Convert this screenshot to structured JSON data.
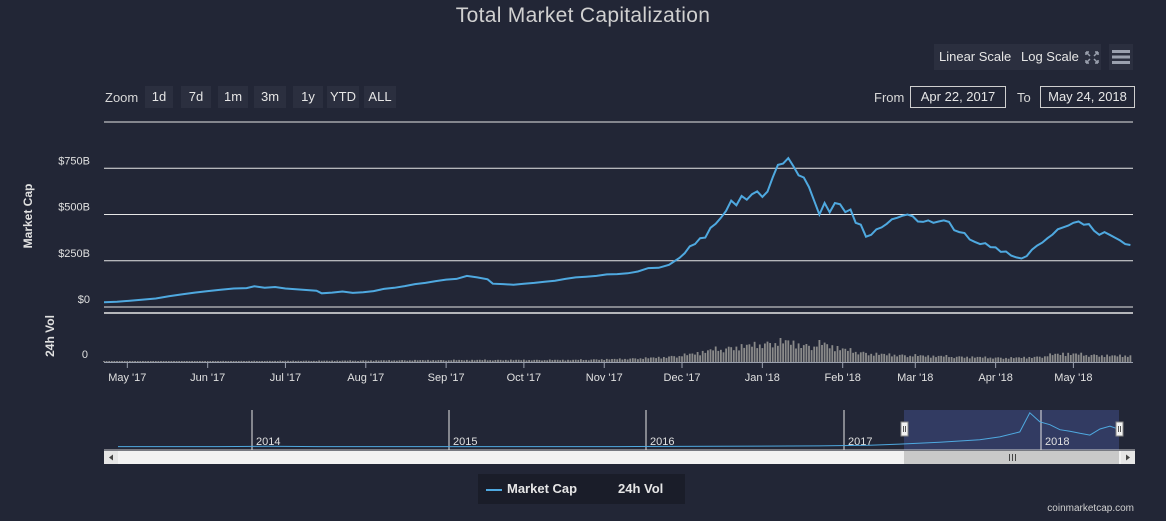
{
  "chart_data": {
    "type": "line",
    "title": "Total Market Capitalization",
    "ylabel": "Market Cap",
    "volume_label": "24h Vol",
    "ylim": [
      0,
      1000
    ],
    "y_ticks": [
      0,
      250,
      500,
      750
    ],
    "y_tick_labels": [
      "$0",
      "$250B",
      "$500B",
      "$750B"
    ],
    "volume_ticks": [
      "0"
    ],
    "date_range": {
      "from": "Apr 22, 2017",
      "to": "May 24, 2018"
    },
    "x_ticks": [
      {
        "label": "May '17",
        "day": 9
      },
      {
        "label": "Jun '17",
        "day": 40
      },
      {
        "label": "Jul '17",
        "day": 70
      },
      {
        "label": "Aug '17",
        "day": 101
      },
      {
        "label": "Sep '17",
        "day": 132
      },
      {
        "label": "Oct '17",
        "day": 162
      },
      {
        "label": "Nov '17",
        "day": 193
      },
      {
        "label": "Dec '17",
        "day": 223
      },
      {
        "label": "Jan '18",
        "day": 254
      },
      {
        "label": "Feb '18",
        "day": 285
      },
      {
        "label": "Mar '18",
        "day": 313
      },
      {
        "label": "Apr '18",
        "day": 344
      },
      {
        "label": "May '18",
        "day": 374
      }
    ],
    "series": [
      {
        "name": "Market Cap",
        "unit": "billion USD",
        "points": [
          [
            0,
            26
          ],
          [
            5,
            28
          ],
          [
            10,
            34
          ],
          [
            15,
            40
          ],
          [
            20,
            46
          ],
          [
            25,
            58
          ],
          [
            30,
            68
          ],
          [
            35,
            78
          ],
          [
            40,
            86
          ],
          [
            45,
            93
          ],
          [
            50,
            100
          ],
          [
            55,
            102
          ],
          [
            58,
            112
          ],
          [
            62,
            104
          ],
          [
            66,
            108
          ],
          [
            70,
            100
          ],
          [
            74,
            96
          ],
          [
            78,
            92
          ],
          [
            82,
            88
          ],
          [
            84,
            74
          ],
          [
            88,
            78
          ],
          [
            92,
            84
          ],
          [
            96,
            76
          ],
          [
            100,
            80
          ],
          [
            104,
            86
          ],
          [
            108,
            98
          ],
          [
            112,
            104
          ],
          [
            116,
            113
          ],
          [
            120,
            124
          ],
          [
            124,
            130
          ],
          [
            128,
            140
          ],
          [
            132,
            148
          ],
          [
            136,
            152
          ],
          [
            140,
            168
          ],
          [
            144,
            160
          ],
          [
            148,
            150
          ],
          [
            150,
            126
          ],
          [
            154,
            124
          ],
          [
            158,
            120
          ],
          [
            162,
            126
          ],
          [
            166,
            130
          ],
          [
            170,
            136
          ],
          [
            174,
            142
          ],
          [
            178,
            152
          ],
          [
            182,
            160
          ],
          [
            186,
            164
          ],
          [
            190,
            168
          ],
          [
            194,
            176
          ],
          [
            198,
            178
          ],
          [
            202,
            182
          ],
          [
            206,
            192
          ],
          [
            210,
            210
          ],
          [
            214,
            212
          ],
          [
            218,
            228
          ],
          [
            222,
            265
          ],
          [
            224,
            290
          ],
          [
            226,
            328
          ],
          [
            228,
            340
          ],
          [
            230,
            372
          ],
          [
            232,
            375
          ],
          [
            234,
            428
          ],
          [
            236,
            450
          ],
          [
            238,
            482
          ],
          [
            240,
            520
          ],
          [
            242,
            575
          ],
          [
            244,
            550
          ],
          [
            246,
            600
          ],
          [
            248,
            580
          ],
          [
            250,
            610
          ],
          [
            252,
            625
          ],
          [
            254,
            595
          ],
          [
            256,
            624
          ],
          [
            258,
            700
          ],
          [
            260,
            768
          ],
          [
            262,
            775
          ],
          [
            264,
            805
          ],
          [
            266,
            760
          ],
          [
            268,
            712
          ],
          [
            270,
            700
          ],
          [
            272,
            648
          ],
          [
            274,
            574
          ],
          [
            276,
            500
          ],
          [
            278,
            562
          ],
          [
            280,
            512
          ],
          [
            282,
            562
          ],
          [
            284,
            555
          ],
          [
            286,
            513
          ],
          [
            288,
            527
          ],
          [
            290,
            455
          ],
          [
            292,
            445
          ],
          [
            294,
            380
          ],
          [
            296,
            390
          ],
          [
            298,
            420
          ],
          [
            300,
            430
          ],
          [
            302,
            450
          ],
          [
            304,
            474
          ],
          [
            306,
            482
          ],
          [
            308,
            493
          ],
          [
            310,
            500
          ],
          [
            312,
            490
          ],
          [
            314,
            462
          ],
          [
            316,
            460
          ],
          [
            318,
            468
          ],
          [
            320,
            455
          ],
          [
            322,
            462
          ],
          [
            324,
            468
          ],
          [
            326,
            460
          ],
          [
            328,
            415
          ],
          [
            330,
            405
          ],
          [
            332,
            400
          ],
          [
            334,
            365
          ],
          [
            336,
            352
          ],
          [
            338,
            340
          ],
          [
            340,
            345
          ],
          [
            342,
            324
          ],
          [
            344,
            322
          ],
          [
            346,
            298
          ],
          [
            348,
            300
          ],
          [
            350,
            278
          ],
          [
            352,
            268
          ],
          [
            354,
            262
          ],
          [
            356,
            275
          ],
          [
            358,
            310
          ],
          [
            360,
            332
          ],
          [
            362,
            348
          ],
          [
            364,
            372
          ],
          [
            366,
            392
          ],
          [
            368,
            420
          ],
          [
            370,
            430
          ],
          [
            372,
            440
          ],
          [
            374,
            455
          ],
          [
            376,
            462
          ],
          [
            378,
            445
          ],
          [
            380,
            448
          ],
          [
            382,
            412
          ],
          [
            384,
            390
          ],
          [
            386,
            405
          ],
          [
            388,
            390
          ],
          [
            390,
            375
          ],
          [
            392,
            360
          ],
          [
            394,
            340
          ],
          [
            396,
            335
          ]
        ]
      },
      {
        "name": "24h Vol",
        "unit": "billion USD",
        "ylim": [
          0,
          70
        ],
        "points": [
          [
            0,
            1
          ],
          [
            30,
            1.5
          ],
          [
            60,
            2
          ],
          [
            90,
            2.5
          ],
          [
            120,
            3.5
          ],
          [
            150,
            4
          ],
          [
            180,
            4
          ],
          [
            200,
            6
          ],
          [
            215,
            9
          ],
          [
            225,
            14
          ],
          [
            235,
            24
          ],
          [
            245,
            30
          ],
          [
            252,
            34
          ],
          [
            258,
            38
          ],
          [
            264,
            40
          ],
          [
            270,
            32
          ],
          [
            278,
            35
          ],
          [
            286,
            24
          ],
          [
            296,
            16
          ],
          [
            310,
            13
          ],
          [
            325,
            11
          ],
          [
            340,
            9
          ],
          [
            350,
            8
          ],
          [
            360,
            10
          ],
          [
            370,
            17
          ],
          [
            380,
            14
          ],
          [
            390,
            12
          ],
          [
            396,
            13
          ]
        ]
      }
    ],
    "navigator": {
      "year_labels": [
        "2014",
        "2015",
        "2016",
        "2017",
        "2018"
      ],
      "points": [
        [
          0,
          1
        ],
        [
          0.05,
          1
        ],
        [
          0.1,
          1
        ],
        [
          0.15,
          2
        ],
        [
          0.2,
          1
        ],
        [
          0.3,
          1
        ],
        [
          0.4,
          1
        ],
        [
          0.5,
          1
        ],
        [
          0.6,
          2
        ],
        [
          0.7,
          3
        ],
        [
          0.72,
          4
        ],
        [
          0.75,
          5
        ],
        [
          0.78,
          8
        ],
        [
          0.82,
          13
        ],
        [
          0.86,
          20
        ],
        [
          0.88,
          28
        ],
        [
          0.9,
          42
        ],
        [
          0.91,
          95
        ],
        [
          0.92,
          70
        ],
        [
          0.93,
          62
        ],
        [
          0.94,
          48
        ],
        [
          0.95,
          44
        ],
        [
          0.96,
          38
        ],
        [
          0.97,
          33
        ],
        [
          0.98,
          50
        ],
        [
          0.99,
          58
        ],
        [
          1.0,
          48
        ]
      ]
    }
  },
  "controls": {
    "scale_buttons": [
      "Linear Scale",
      "Log Scale"
    ],
    "zoom_label": "Zoom",
    "zoom_buttons": [
      "1d",
      "7d",
      "1m",
      "3m",
      "1y",
      "YTD",
      "ALL"
    ],
    "from_label": "From",
    "to_label": "To"
  },
  "legend": {
    "market_cap": "Market Cap",
    "volume": "24h Vol"
  },
  "colors": {
    "line": "#4fa9e0",
    "bar": "#8a8a8a",
    "background": "#222636",
    "grid": "#e6e6e6"
  },
  "credits": "coinmarketcap.com"
}
